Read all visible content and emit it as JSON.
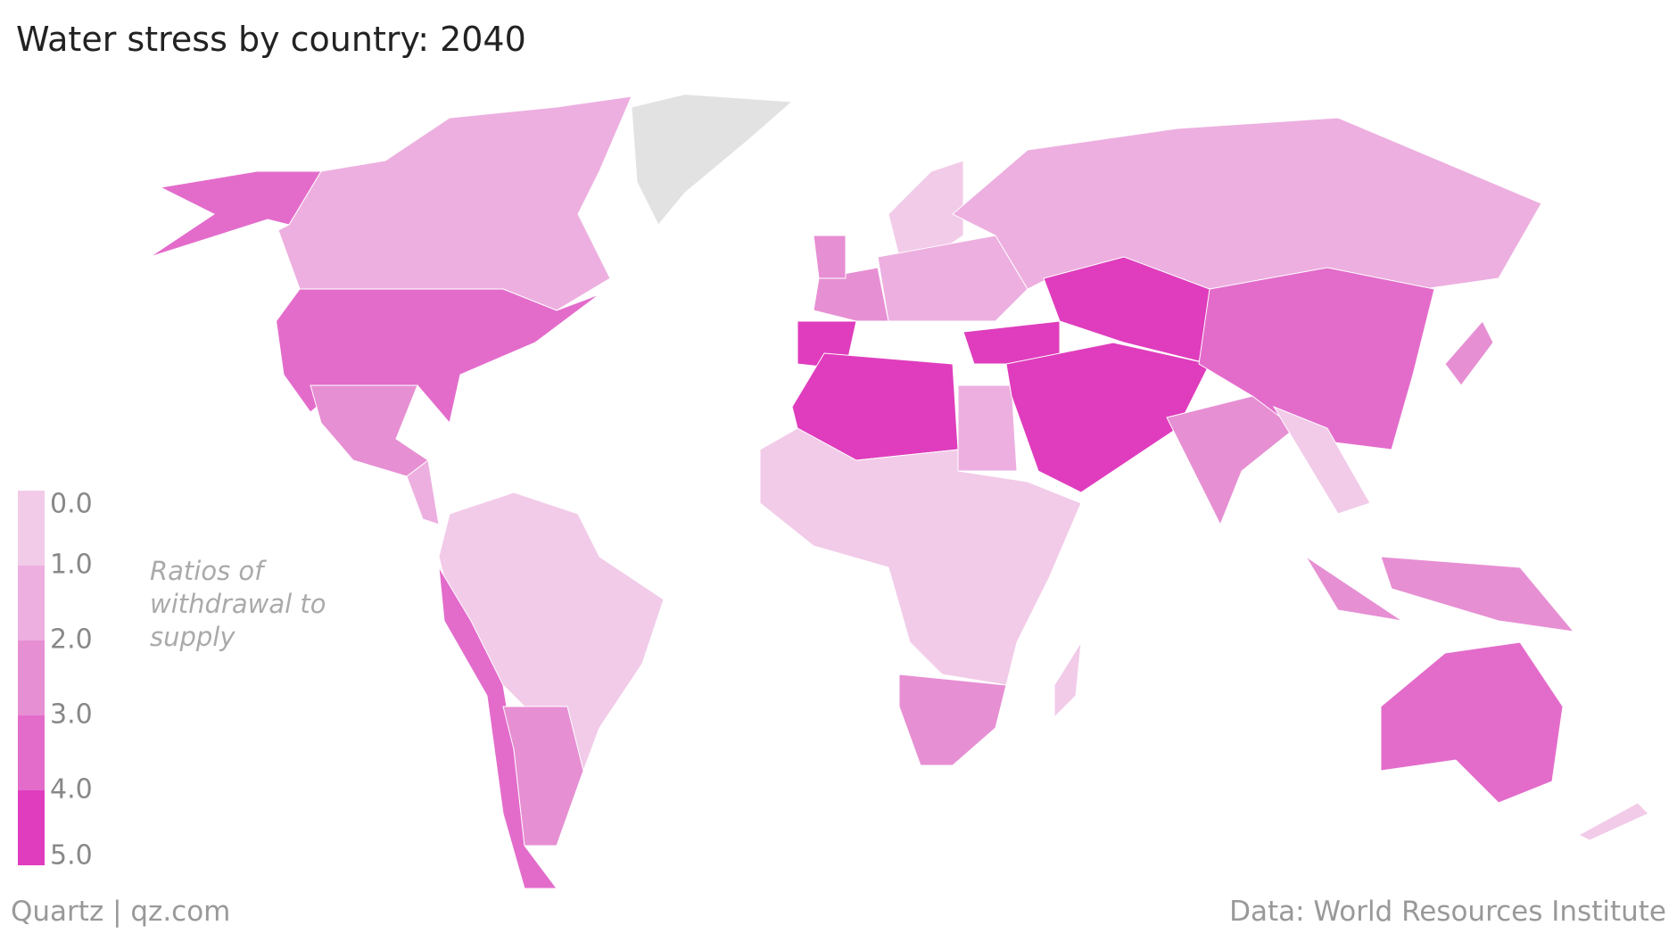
{
  "chart_data": {
    "type": "choropleth",
    "title": "Water stress by country: 2040",
    "legend_title": "Ratios of withdrawal to supply",
    "source_left": "Quartz | qz.com",
    "source_right": "Data: World Resources Institute",
    "ticks": [
      {
        "value": 0,
        "label": "0.0"
      },
      {
        "value": 1,
        "label": "1.0"
      },
      {
        "value": 2,
        "label": "2.0"
      },
      {
        "value": 3,
        "label": "3.0"
      },
      {
        "value": 4,
        "label": "4.0"
      },
      {
        "value": 5,
        "label": "5.0"
      }
    ],
    "colors": [
      "#f2cbe9",
      "#edafe0",
      "#e78fd3",
      "#e36ccb",
      "#df3dbd"
    ],
    "values": [
      3.5,
      1.5,
      3.5,
      3.0,
      1.5,
      0.5,
      3.5,
      2.5,
      3.0,
      4.5,
      3.0,
      0.5,
      2.0,
      1.5,
      4.5,
      4.5,
      2.0,
      4.5,
      4.5,
      3.5,
      3.0,
      1.0,
      2.5,
      3.0,
      3.0,
      0.5,
      3.0,
      0.5,
      3.5,
      1.0
    ]
  }
}
